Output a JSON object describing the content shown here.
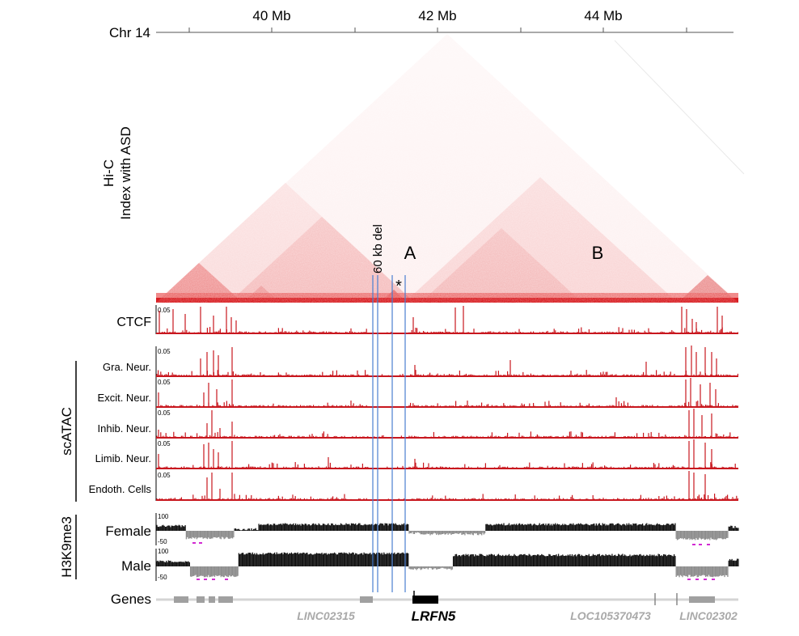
{
  "axis": {
    "chrom": "Chr 14",
    "ticks": [
      {
        "label": "40 Mb"
      },
      {
        "label": "42 Mb"
      },
      {
        "label": "44 Mb"
      }
    ]
  },
  "hic": {
    "label_line1": "Hi-C",
    "label_line2": "Index with ASD",
    "deletion_label": "60 kb del",
    "domain_a": "A",
    "domain_b": "B",
    "star": "*",
    "color": "#e8262a"
  },
  "ctcf": {
    "label": "CTCF",
    "scale": "0.05"
  },
  "scatac": {
    "group_label": "scATAC",
    "tracks": [
      {
        "label": "Gra. Neur.",
        "scale": "0.05"
      },
      {
        "label": "Excit. Neur.",
        "scale": "0.05"
      },
      {
        "label": "Inhib. Neur.",
        "scale": "0.05"
      },
      {
        "label": "Limib. Neur.",
        "scale": "0.05"
      },
      {
        "label": "Endoth. Cells",
        "scale": "0.05"
      }
    ]
  },
  "h3k9me3": {
    "group_label": "H3K9me3",
    "tracks": [
      {
        "label": "Female",
        "top": "100",
        "bottom": "-50"
      },
      {
        "label": "Male",
        "top": "100",
        "bottom": "-50"
      }
    ]
  },
  "genes": {
    "label": "Genes",
    "names": [
      {
        "name": "LINC02315",
        "highlight": false
      },
      {
        "name": "LRFN5",
        "highlight": true
      },
      {
        "name": "LOC105370473",
        "highlight": false
      },
      {
        "name": "LINC02302",
        "highlight": false
      }
    ]
  },
  "colors": {
    "track_red": "#c8171e",
    "deletion_blue": "#4a7fd0",
    "gene_gray": "#9a9a9a",
    "signal_black": "#111111",
    "signal_gray": "#8c8c8c",
    "magenta": "#d22ad2"
  }
}
